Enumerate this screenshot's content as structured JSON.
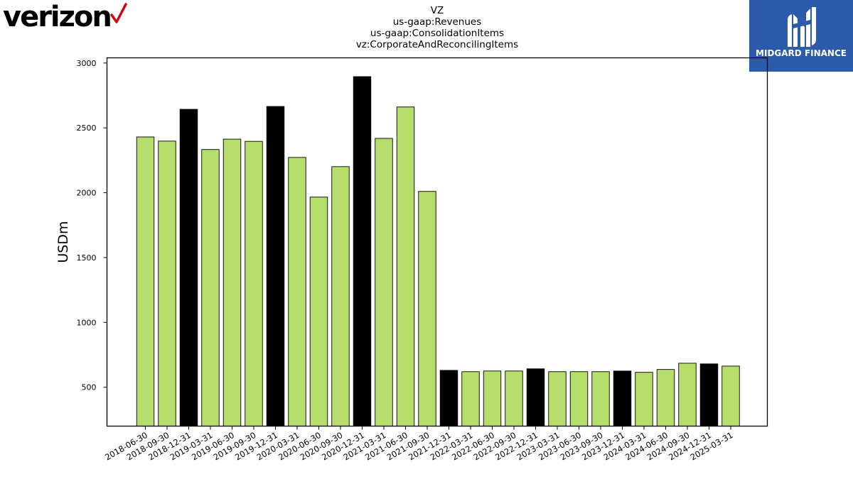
{
  "logos": {
    "left_text": "verizon",
    "right_text": "MIDGARD FINANCE",
    "left_icon": "checkmark-icon",
    "right_icon": "midgard-mark-icon",
    "colors": {
      "verizon_check": "#cd040b",
      "midgard_bg": "#2d5bab"
    }
  },
  "chart_data": {
    "type": "bar",
    "title": "VZ",
    "subtitle_lines": [
      "us-gaap:Revenues",
      "us-gaap:ConsolidationItems",
      "vz:CorporateAndReconcilingItems"
    ],
    "xlabel": "",
    "ylabel": "USDm",
    "ylim": [
      200,
      3040
    ],
    "yticks": [
      500,
      1000,
      1500,
      2000,
      2500,
      3000
    ],
    "grid": false,
    "categories": [
      "2018-06-30",
      "2018-09-30",
      "2018-12-31",
      "2019-03-31",
      "2019-06-30",
      "2019-09-30",
      "2019-12-31",
      "2020-03-31",
      "2020-06-30",
      "2020-09-30",
      "2020-12-31",
      "2021-03-31",
      "2021-06-30",
      "2021-09-30",
      "2021-12-31",
      "2022-03-31",
      "2022-06-30",
      "2022-09-30",
      "2022-12-31",
      "2023-03-31",
      "2023-06-30",
      "2023-09-30",
      "2023-12-31",
      "2024-03-31",
      "2024-06-30",
      "2024-09-30",
      "2024-12-31",
      "2025-03-31"
    ],
    "values": [
      2430,
      2398,
      2643,
      2333,
      2413,
      2396,
      2665,
      2272,
      1966,
      2201,
      2895,
      2419,
      2661,
      2010,
      630,
      620,
      625,
      625,
      642,
      620,
      620,
      620,
      625,
      615,
      637,
      685,
      680,
      663
    ],
    "highlight": [
      false,
      false,
      true,
      false,
      false,
      false,
      true,
      false,
      false,
      false,
      true,
      false,
      false,
      false,
      true,
      false,
      false,
      false,
      true,
      false,
      false,
      false,
      true,
      false,
      false,
      false,
      true,
      false
    ],
    "colors": {
      "regular": "#b5de6b",
      "highlight": "#000000",
      "edge": "#000000"
    }
  }
}
